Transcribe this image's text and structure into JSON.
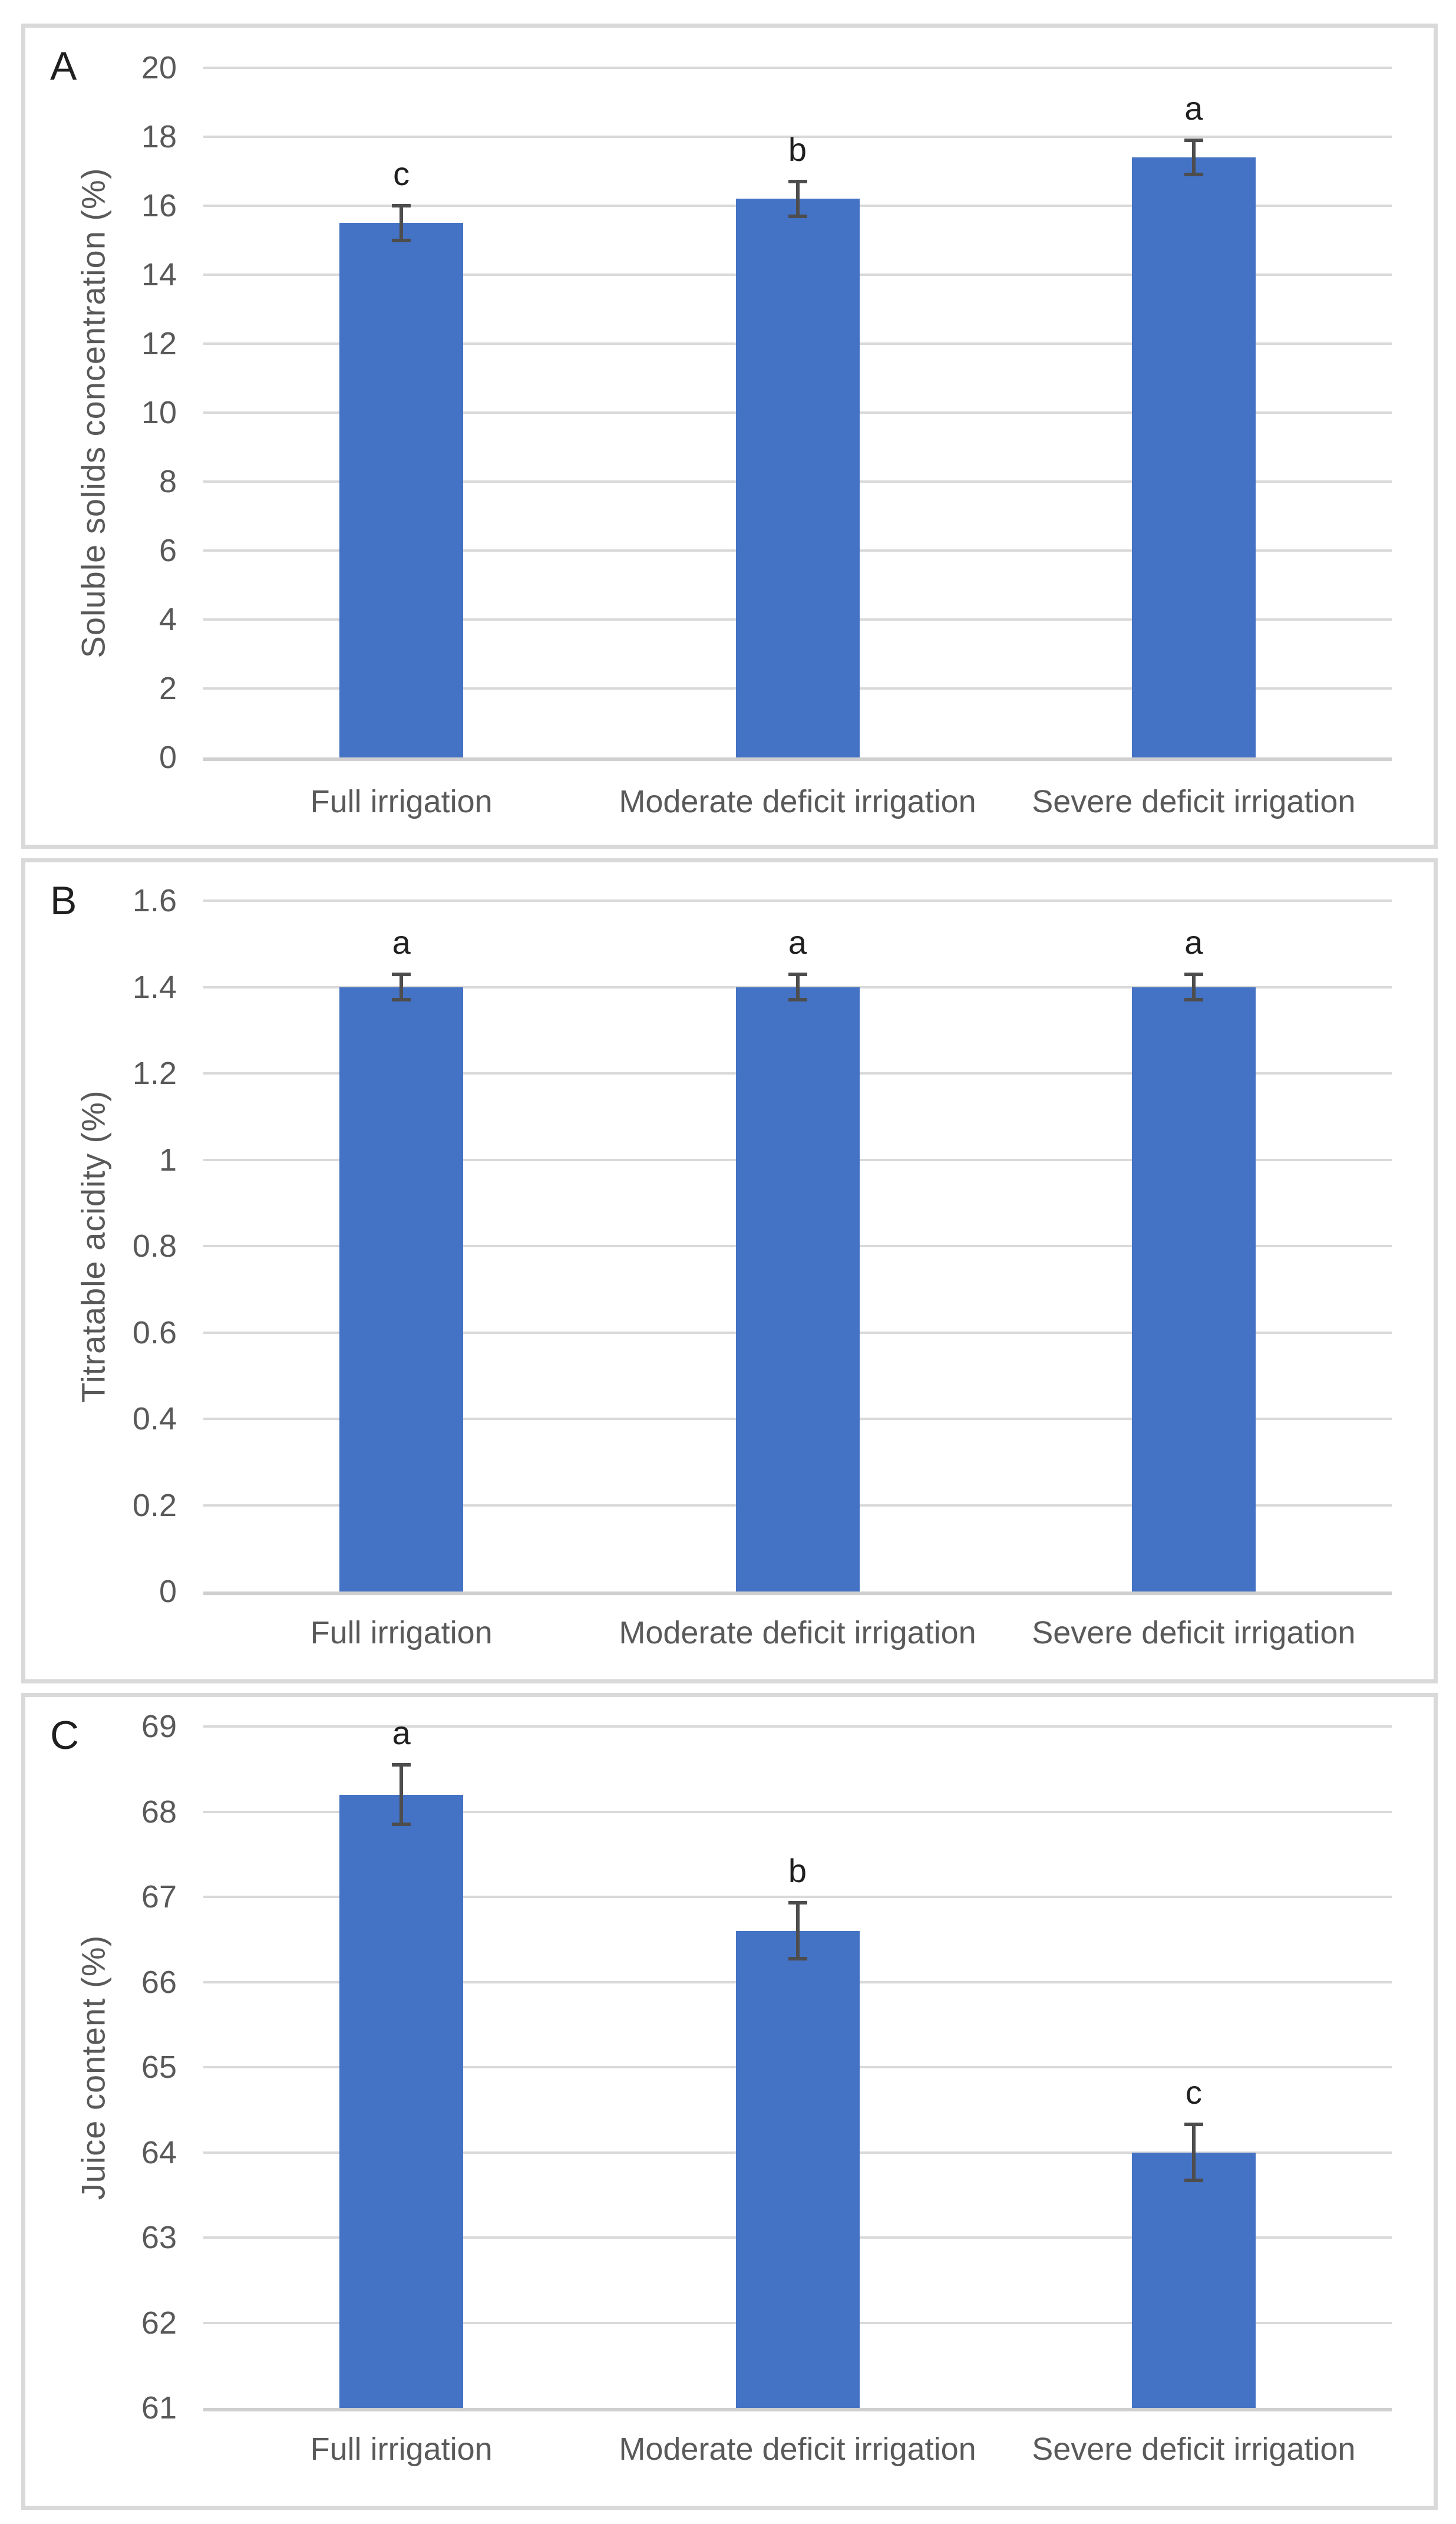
{
  "figure": {
    "background": "#ffffff",
    "panel_border_color": "#d9d9d9",
    "gridline_color": "#d9d9d9",
    "axis_line_color": "#cfcfcf",
    "bar_color": "#4472c4",
    "error_bar_color": "#4d4d4d",
    "axis_text_color": "#595959",
    "annotation_text_color": "#1f1f1f"
  },
  "chart_data": [
    {
      "type": "bar",
      "panel_label": "A",
      "title": "",
      "xlabel": "",
      "ylabel": "Soluble solids concentration (%)",
      "categories": [
        "Full irrigation",
        "Moderate deficit irrigation",
        "Severe deficit irrigation"
      ],
      "values": [
        15.5,
        16.2,
        17.4
      ],
      "error_bars": [
        0.5,
        0.5,
        0.5
      ],
      "significance_letters": [
        "c",
        "b",
        "a"
      ],
      "ylim": [
        0,
        20
      ],
      "ytick_step": 2,
      "grid": "horizontal",
      "legend": "none"
    },
    {
      "type": "bar",
      "panel_label": "B",
      "title": "",
      "xlabel": "",
      "ylabel": "Titratable acidity (%)",
      "categories": [
        "Full irrigation",
        "Moderate deficit irrigation",
        "Severe deficit irrigation"
      ],
      "values": [
        1.4,
        1.4,
        1.4
      ],
      "error_bars": [
        0.03,
        0.03,
        0.03
      ],
      "significance_letters": [
        "a",
        "a",
        "a"
      ],
      "ylim": [
        0,
        1.6
      ],
      "ytick_step": 0.2,
      "grid": "horizontal",
      "legend": "none"
    },
    {
      "type": "bar",
      "panel_label": "C",
      "title": "",
      "xlabel": "",
      "ylabel": "Juice content (%)",
      "categories": [
        "Full irrigation",
        "Moderate deficit irrigation",
        "Severe deficit irrigation"
      ],
      "values": [
        68.2,
        66.6,
        64.0
      ],
      "error_bars": [
        0.35,
        0.33,
        0.33
      ],
      "significance_letters": [
        "a",
        "b",
        "c"
      ],
      "ylim": [
        61,
        69
      ],
      "ytick_step": 1,
      "grid": "horizontal",
      "legend": "none"
    }
  ]
}
